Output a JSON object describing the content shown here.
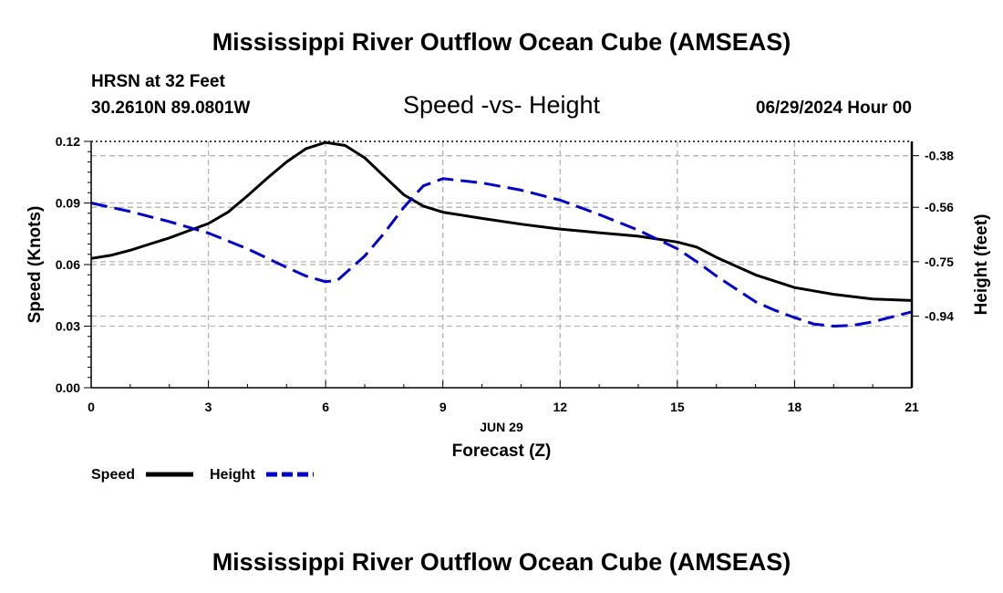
{
  "header": {
    "title": "Mississippi River Outflow Ocean Cube (AMSEAS)",
    "station": "HRSN at 32 Feet",
    "coords": "30.2610N  89.0801W",
    "chart_title": "Speed -vs- Height",
    "datetime": "06/29/2024 Hour 00",
    "footer_title": "Mississippi River Outflow Ocean Cube (AMSEAS)"
  },
  "colors": {
    "speed": "#000000",
    "height": "#0000cc",
    "grid": "#b4b4b4"
  },
  "chart_data": {
    "type": "line",
    "title": "Speed -vs- Height",
    "xlabel_date": "JUN 29",
    "xlabel": "Forecast (Z)",
    "ylabel_left": "Speed (Knots)",
    "ylabel_right": "Height (feet)",
    "xlim": [
      0,
      21
    ],
    "ylim_left": [
      0,
      0.12
    ],
    "ylim_right": [
      -1.19,
      -0.33
    ],
    "x_ticks": [
      "0",
      "3",
      "6",
      "9",
      "12",
      "15",
      "18",
      "21"
    ],
    "left_ticks": [
      "0.00",
      "0.03",
      "0.06",
      "0.09",
      "0.12"
    ],
    "right_ticks": [
      "-0.38",
      "-0.56",
      "-0.75",
      "-0.94"
    ],
    "grid": true,
    "legend_position": "bottom-left",
    "series": [
      {
        "name": "Speed",
        "axis": "left",
        "style": "solid",
        "x": [
          0,
          0.5,
          1,
          1.5,
          2,
          2.5,
          3,
          3.5,
          4,
          4.5,
          5,
          5.5,
          6,
          6.5,
          7,
          7.5,
          8,
          8.5,
          9,
          10,
          11,
          12,
          13,
          14,
          15,
          15.5,
          16,
          17,
          18,
          19,
          20,
          21
        ],
        "values": [
          0.063,
          0.0645,
          0.067,
          0.07,
          0.073,
          0.0765,
          0.08,
          0.0855,
          0.0935,
          0.102,
          0.11,
          0.1165,
          0.1195,
          0.118,
          0.112,
          0.103,
          0.094,
          0.0885,
          0.0855,
          0.0825,
          0.0797,
          0.0773,
          0.0755,
          0.0738,
          0.071,
          0.0685,
          0.0635,
          0.055,
          0.0488,
          0.0455,
          0.0432,
          0.0425
        ]
      },
      {
        "name": "Height",
        "axis": "right",
        "style": "dashed",
        "x": [
          0,
          1,
          2,
          3,
          4,
          5,
          5.5,
          6,
          6.3,
          7,
          7.5,
          8,
          8.5,
          9,
          10,
          11,
          12,
          13,
          14,
          15,
          15.5,
          16,
          17,
          17.5,
          18,
          18.5,
          19,
          19.5,
          20,
          21
        ],
        "values": [
          -0.545,
          -0.575,
          -0.61,
          -0.65,
          -0.705,
          -0.77,
          -0.8,
          -0.82,
          -0.815,
          -0.73,
          -0.65,
          -0.56,
          -0.485,
          -0.46,
          -0.475,
          -0.5,
          -0.535,
          -0.585,
          -0.64,
          -0.705,
          -0.75,
          -0.8,
          -0.89,
          -0.92,
          -0.945,
          -0.968,
          -0.975,
          -0.972,
          -0.96,
          -0.925
        ]
      }
    ]
  },
  "legend": {
    "speed_label": "Speed",
    "height_label": "Height"
  }
}
